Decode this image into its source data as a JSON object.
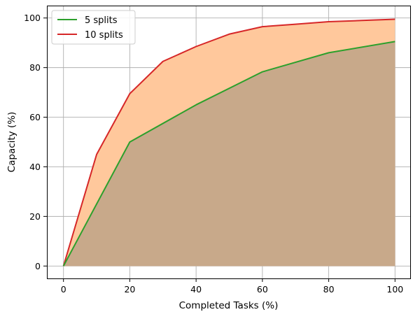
{
  "chart_data": {
    "type": "area",
    "xlabel": "Completed Tasks (%)",
    "ylabel": "Capacity (%)",
    "xlim": [
      -5,
      105
    ],
    "ylim": [
      -5,
      105
    ],
    "xticks": [
      0,
      20,
      40,
      60,
      80,
      100
    ],
    "yticks": [
      0,
      20,
      40,
      60,
      80,
      100
    ],
    "grid": true,
    "legend": {
      "placement": "top-left"
    },
    "series": [
      {
        "name": "5 splits",
        "color": "#2ca02c",
        "fill_color": "#c8a98a",
        "x": [
          0,
          20,
          40,
          60,
          80,
          100
        ],
        "values": [
          0,
          50,
          65,
          78.3,
          86,
          90.5
        ]
      },
      {
        "name": "10 splits",
        "color": "#d62728",
        "fill_color": "#ffc89c",
        "x": [
          0,
          10,
          20,
          30,
          40,
          50,
          60,
          70,
          80,
          90,
          100
        ],
        "values": [
          0,
          45,
          69.5,
          82.5,
          88.5,
          93.5,
          96.5,
          97.5,
          98.5,
          99,
          99.5
        ]
      }
    ]
  }
}
